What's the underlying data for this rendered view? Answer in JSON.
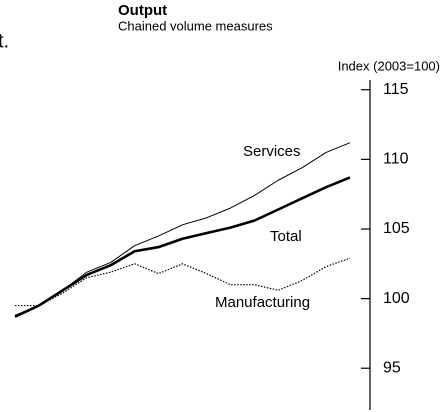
{
  "chart_data": {
    "type": "line",
    "title": "Output",
    "subtitle": "Chained volume measures",
    "annotation": "t.",
    "y_axis_label": "Index (2003=100)",
    "categories": [
      null,
      null,
      null,
      null,
      null,
      null,
      null,
      null,
      null,
      null,
      null,
      null,
      null,
      null,
      null
    ],
    "series": [
      {
        "name": "Services",
        "color": "#000000",
        "style": "thin",
        "values": [
          98.8,
          99.5,
          100.6,
          101.9,
          102.6,
          103.8,
          104.5,
          105.3,
          105.8,
          106.5,
          107.4,
          108.5,
          109.4,
          110.5,
          111.2
        ]
      },
      {
        "name": "Total",
        "color": "#000000",
        "style": "thick",
        "values": [
          98.7,
          99.5,
          100.6,
          101.7,
          102.4,
          103.4,
          103.7,
          104.3,
          104.7,
          105.1,
          105.6,
          106.4,
          107.2,
          108.0,
          108.7
        ]
      },
      {
        "name": "Manufacturing",
        "color": "#000000",
        "style": "dotted",
        "values": [
          99.5,
          99.5,
          100.4,
          101.5,
          101.9,
          102.5,
          101.8,
          102.5,
          101.8,
          101.0,
          101.0,
          100.6,
          101.3,
          102.3,
          102.9
        ]
      }
    ],
    "ylim": [
      92,
      115.7
    ],
    "yticks": [
      95,
      100,
      105,
      110,
      115
    ],
    "axis_side": "right"
  }
}
